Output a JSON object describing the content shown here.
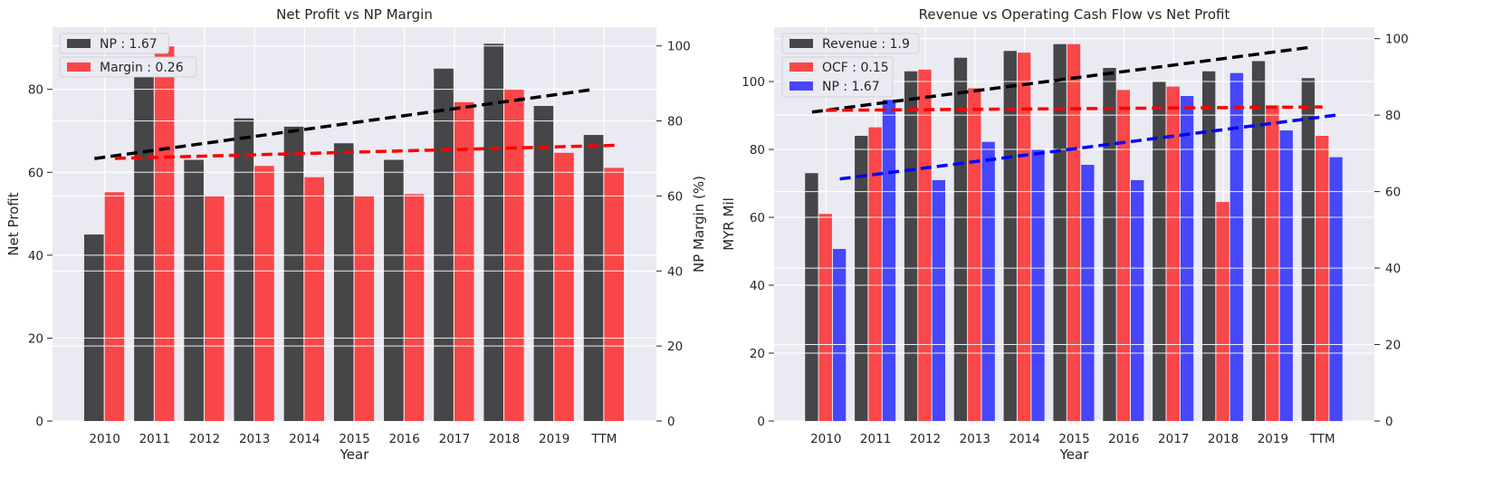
{
  "chart_data": [
    {
      "type": "bar",
      "title": "Net Profit vs NP Margin",
      "xlabel": "Year",
      "ylabel": "Net Profit",
      "y2label": "NP Margin (%)",
      "categories": [
        "2010",
        "2011",
        "2012",
        "2013",
        "2014",
        "2015",
        "2016",
        "2017",
        "2018",
        "2019",
        "TTM"
      ],
      "ylim": [
        0,
        95
      ],
      "y2lim": [
        0,
        105
      ],
      "yticks": [
        0,
        20,
        40,
        60,
        80
      ],
      "y2ticks": [
        0,
        20,
        40,
        60,
        80,
        100
      ],
      "grid": true,
      "legend_position": "top-left",
      "series": [
        {
          "name": "NP : 1.67",
          "axis": "left",
          "color": "#000000",
          "values": [
            45,
            84,
            63,
            73,
            71,
            67,
            63,
            85,
            91,
            76,
            69
          ],
          "trend": [
            63.3,
            80.0
          ]
        },
        {
          "name": "Margin : 0.26",
          "axis": "right",
          "color": "#ff0000",
          "values": [
            61,
            100,
            60,
            68,
            65,
            60,
            60.5,
            85,
            88.5,
            71.5,
            67.5
          ],
          "trend": [
            70.0,
            73.5
          ]
        }
      ]
    },
    {
      "type": "bar",
      "title": "Revenue vs Operating Cash Flow vs Net Profit",
      "xlabel": "Year",
      "ylabel": "MYR Mil",
      "categories": [
        "2010",
        "2011",
        "2012",
        "2013",
        "2014",
        "2015",
        "2016",
        "2017",
        "2018",
        "2019",
        "TTM"
      ],
      "ylim": [
        0,
        116
      ],
      "y2lim": [
        0,
        103
      ],
      "yticks": [
        0,
        20,
        40,
        60,
        80,
        100
      ],
      "y2ticks": [
        0,
        20,
        40,
        60,
        80,
        100
      ],
      "grid": true,
      "legend_position": "top-left",
      "series": [
        {
          "name": "Revenue : 1.9",
          "axis": "left",
          "color": "#000000",
          "values": [
            73,
            84,
            103,
            107,
            109,
            111,
            104,
            100,
            103,
            106,
            101
          ],
          "trend": [
            91.0,
            110.0
          ]
        },
        {
          "name": "OCF : 0.15",
          "axis": "left",
          "color": "#ff0000",
          "values": [
            61,
            86.5,
            103.5,
            98,
            108.5,
            111,
            97.5,
            98.5,
            64.5,
            93,
            84
          ],
          "trend": [
            91.5,
            92.5
          ]
        },
        {
          "name": "NP : 1.67",
          "axis": "right",
          "color": "#0000ff",
          "values": [
            45,
            84,
            63,
            73,
            71,
            67,
            63,
            85,
            91,
            76,
            69
          ],
          "trend": [
            63.3,
            80.0
          ]
        }
      ]
    }
  ]
}
